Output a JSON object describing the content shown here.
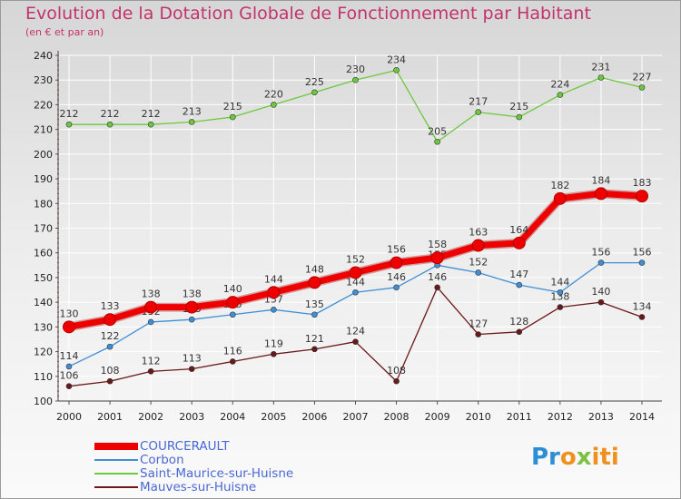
{
  "title": "Evolution de la Dotation Globale de Fonctionnement par Habitant",
  "subtitle": "(en € et par an)",
  "logo": {
    "p1": "Pr",
    "p2": "o",
    "p3": "x",
    "p4": "iti"
  },
  "colors": {
    "title": "#c3336b",
    "legend_text": "#4a68d4",
    "axis_text": "#222222"
  },
  "chart_data": {
    "type": "line",
    "x": [
      "2000",
      "2001",
      "2002",
      "2003",
      "2004",
      "2005",
      "2006",
      "2007",
      "2008",
      "2009",
      "2010",
      "2011",
      "2012",
      "2013",
      "2014"
    ],
    "ylim": [
      100,
      240
    ],
    "yticks": [
      100,
      110,
      120,
      130,
      140,
      150,
      160,
      170,
      180,
      190,
      200,
      210,
      220,
      230,
      240
    ],
    "grid": true,
    "legend_position": "bottom-left",
    "series": [
      {
        "name": "COURCERAULT",
        "color": "#ee0000",
        "values": [
          130,
          133,
          138,
          138,
          140,
          144,
          148,
          152,
          156,
          158,
          163,
          164,
          182,
          184,
          183
        ]
      },
      {
        "name": "Corbon",
        "color": "#3f8fd6",
        "values": [
          114,
          122,
          132,
          133,
          135,
          137,
          135,
          144,
          146,
          155,
          152,
          147,
          144,
          156,
          156
        ]
      },
      {
        "name": "Saint-Maurice-sur-Huisne",
        "color": "#6cc93c",
        "values": [
          212,
          212,
          212,
          213,
          215,
          220,
          225,
          230,
          234,
          205,
          217,
          215,
          224,
          231,
          227
        ]
      },
      {
        "name": "Mauves-sur-Huisne",
        "color": "#6b1818",
        "values": [
          106,
          108,
          112,
          113,
          116,
          119,
          121,
          124,
          108,
          146,
          127,
          128,
          138,
          140,
          134
        ]
      }
    ]
  }
}
